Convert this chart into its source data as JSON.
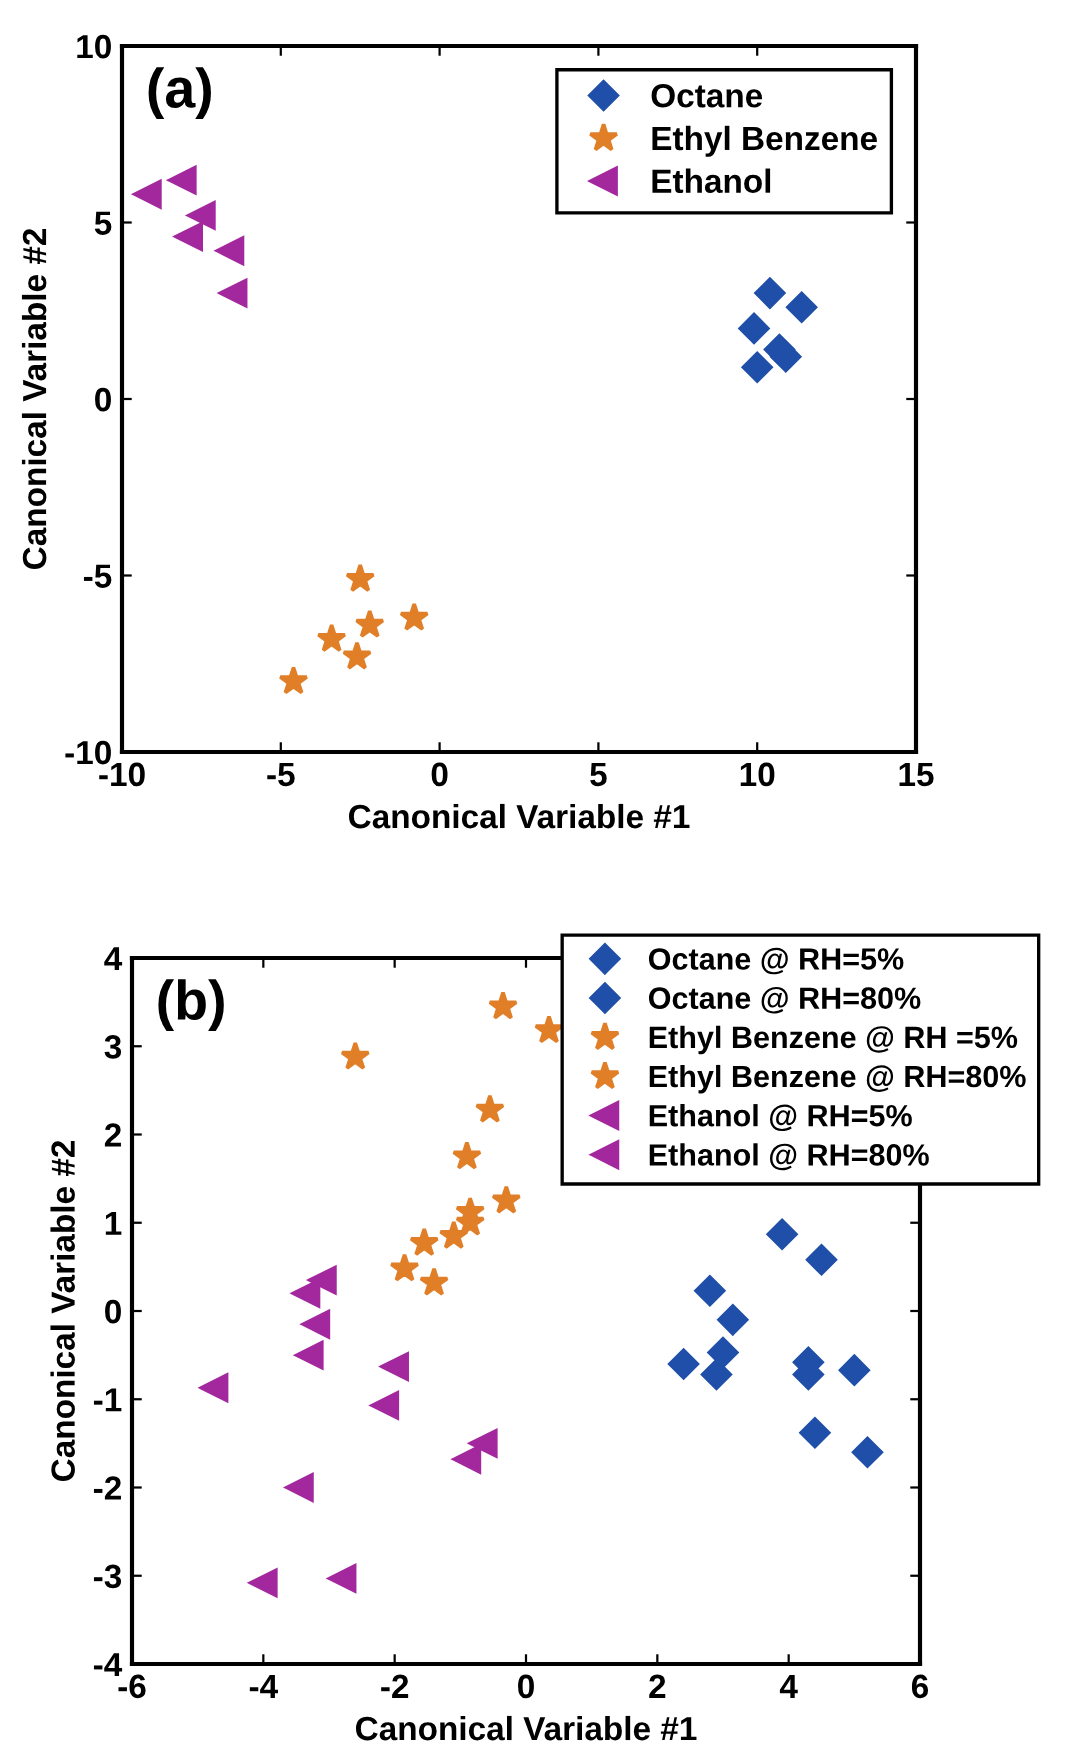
{
  "chart_data": [
    {
      "type": "scatter",
      "xlabel": "Canonical Variable #1",
      "ylabel": "Canonical Variable #2",
      "annotations": [
        "(a)"
      ],
      "xlim": [
        -10,
        15
      ],
      "ylim": [
        -10,
        10
      ],
      "xticks": [
        -10,
        -5,
        0,
        5,
        10,
        15
      ],
      "yticks": [
        -10,
        -5,
        0,
        5,
        10
      ],
      "grid": false,
      "legend": "top right",
      "series": [
        {
          "name": "Octane",
          "color": "#1f4fa8",
          "marker": "diamond",
          "x": [
            10.4,
            11.4,
            9.9,
            10.0,
            10.7,
            10.9
          ],
          "values": [
            3.0,
            2.6,
            2.0,
            0.9,
            1.4,
            1.2
          ]
        },
        {
          "name": "Ethyl Benzene",
          "color": "#e07f27",
          "marker": "star",
          "x": [
            -2.5,
            -0.8,
            -2.2,
            -3.4,
            -2.6,
            -4.6
          ],
          "values": [
            -5.1,
            -6.2,
            -6.4,
            -6.8,
            -7.3,
            -8.0
          ]
        },
        {
          "name": "Ethanol",
          "color": "#a3289e",
          "marker": "triangle",
          "x": [
            -9.2,
            -8.1,
            -7.5,
            -7.9,
            -6.6,
            -6.5
          ],
          "values": [
            5.8,
            6.2,
            5.2,
            4.6,
            4.2,
            3.0
          ]
        }
      ]
    },
    {
      "type": "scatter",
      "xlabel": "Canonical Variable #1",
      "ylabel": "Canonical Variable #2",
      "annotations": [
        "(b)"
      ],
      "xlim": [
        -6,
        6
      ],
      "ylim": [
        -4,
        4
      ],
      "xticks": [
        -6,
        -4,
        -2,
        0,
        2,
        4,
        6
      ],
      "yticks": [
        -4,
        -3,
        -2,
        -1,
        0,
        1,
        2,
        3,
        4
      ],
      "grid": false,
      "legend": "top right",
      "series": [
        {
          "name": "Octane @ RH=5%",
          "color": "#1f4fa8",
          "marker": "diamond",
          "x": [
            4.5,
            4.3,
            4.3,
            5.0,
            4.4,
            5.2
          ],
          "values": [
            0.58,
            -0.58,
            -0.72,
            -0.67,
            -1.38,
            -1.6
          ]
        },
        {
          "name": "Octane @ RH=80%",
          "color": "#1f4fa8",
          "marker": "diamond",
          "x": [
            3.9,
            2.8,
            3.15,
            3.0,
            2.4,
            2.9
          ],
          "values": [
            0.87,
            0.23,
            -0.1,
            -0.47,
            -0.6,
            -0.72
          ]
        },
        {
          "name": "Ethyl Benzene @ RH =5%",
          "color": "#e07f27",
          "marker": "star",
          "x": [
            -2.6,
            -0.35,
            -0.9,
            -1.1,
            -1.85,
            -1.4
          ],
          "values": [
            2.88,
            3.45,
            1.75,
            0.85,
            0.48,
            0.32
          ]
        },
        {
          "name": "Ethyl Benzene @ RH=80%",
          "color": "#e07f27",
          "marker": "star",
          "x": [
            0.35,
            -0.55,
            -0.3,
            -0.85,
            -0.85,
            -1.55
          ],
          "values": [
            3.18,
            2.28,
            1.25,
            1.12,
            1.0,
            0.77
          ]
        },
        {
          "name": "Ethanol @ RH=5%",
          "color": "#a3289e",
          "marker": "triangle",
          "x": [
            -3.1,
            -3.35,
            -3.3,
            -0.65,
            -0.9,
            -4.0
          ],
          "values": [
            0.35,
            0.2,
            -0.5,
            -1.5,
            -1.68,
            -3.08
          ]
        },
        {
          "name": "Ethanol @ RH=80%",
          "color": "#a3289e",
          "marker": "triangle",
          "x": [
            -3.2,
            -2.0,
            -4.75,
            -2.15,
            -3.45,
            -2.8
          ],
          "values": [
            -0.15,
            -0.63,
            -0.87,
            -1.07,
            -2.0,
            -3.03
          ]
        }
      ]
    }
  ]
}
